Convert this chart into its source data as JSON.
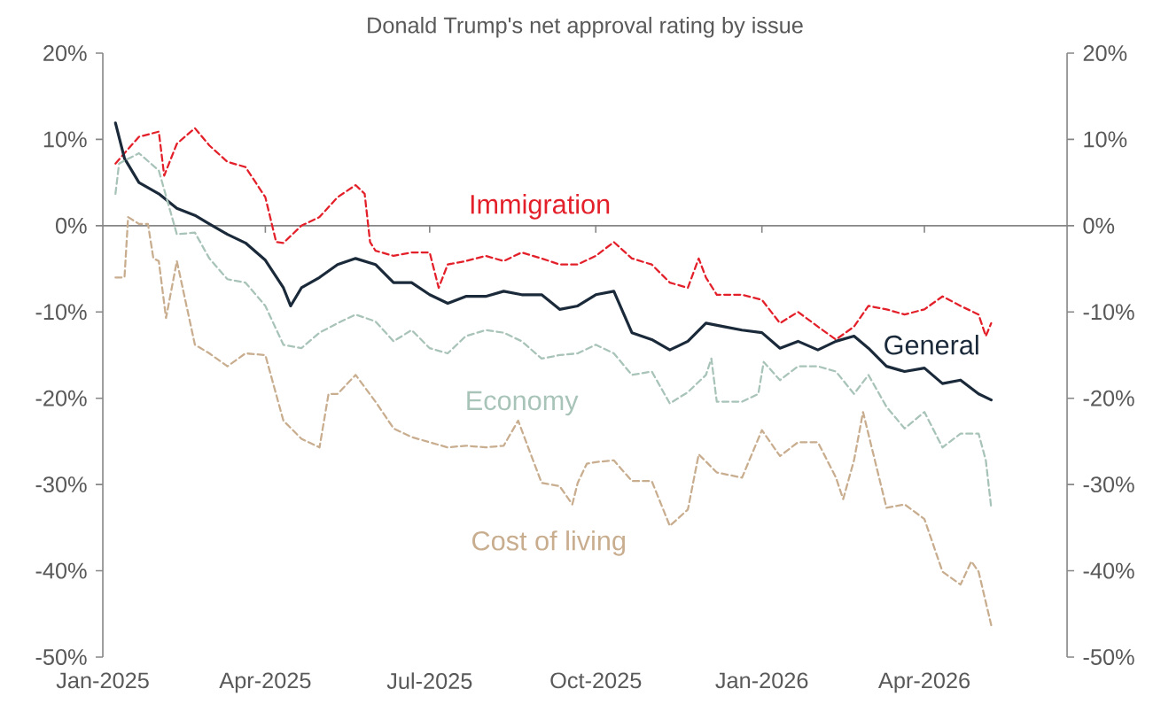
{
  "chart_data": {
    "type": "line",
    "title": "Donald Trump's net approval rating by issue",
    "xlim": [
      "2025-01-01",
      "2026-06-19"
    ],
    "xticks": [
      {
        "value": "2025-01-01",
        "label": "Jan-2025"
      },
      {
        "value": "2025-04-01",
        "label": "Apr-2025"
      },
      {
        "value": "2025-07-01",
        "label": "Jul-2025"
      },
      {
        "value": "2025-10-01",
        "label": "Oct-2025"
      },
      {
        "value": "2026-01-01",
        "label": "Jan-2026"
      },
      {
        "value": "2026-04-01",
        "label": "Apr-2026"
      }
    ],
    "ylim": [
      -50,
      20
    ],
    "yticks": [
      {
        "value": -50,
        "label": "-50%"
      },
      {
        "value": -40,
        "label": "-40%"
      },
      {
        "value": -30,
        "label": "-30%"
      },
      {
        "value": -20,
        "label": "-20%"
      },
      {
        "value": -10,
        "label": "-10%"
      },
      {
        "value": 0,
        "label": "0%"
      },
      {
        "value": 10,
        "label": "10%"
      },
      {
        "value": 20,
        "label": "20%"
      }
    ],
    "y2lim": [
      -50,
      20
    ],
    "y2ticks": [
      {
        "value": -50,
        "label": "-50%"
      },
      {
        "value": -40,
        "label": "-40%"
      },
      {
        "value": -30,
        "label": "-30%"
      },
      {
        "value": -20,
        "label": "-20%"
      },
      {
        "value": -10,
        "label": "-10%"
      },
      {
        "value": 0,
        "label": "0%"
      },
      {
        "value": 10,
        "label": "10%"
      },
      {
        "value": 20,
        "label": "20%"
      }
    ],
    "grid": false,
    "legend": false,
    "marker": "none",
    "ref_lines": [
      {
        "axis": "y",
        "value": 0,
        "color": "#868686",
        "line_style": "solid"
      }
    ],
    "series": [
      {
        "name": "Immigration",
        "color": "#e3202a",
        "line_style": "dashed",
        "x": [
          "2025-01-08",
          "2025-01-13",
          "2025-01-21",
          "2025-02-01",
          "2025-02-04",
          "2025-02-11",
          "2025-02-21",
          "2025-03-01",
          "2025-03-11",
          "2025-03-21",
          "2025-04-01",
          "2025-04-07",
          "2025-04-11",
          "2025-04-21",
          "2025-05-01",
          "2025-05-11",
          "2025-05-21",
          "2025-05-26",
          "2025-05-29",
          "2025-06-01",
          "2025-06-11",
          "2025-06-21",
          "2025-07-01",
          "2025-07-06",
          "2025-07-11",
          "2025-07-21",
          "2025-08-01",
          "2025-08-11",
          "2025-08-21",
          "2025-09-01",
          "2025-09-11",
          "2025-09-21",
          "2025-10-01",
          "2025-10-11",
          "2025-10-21",
          "2025-11-01",
          "2025-11-11",
          "2025-11-21",
          "2025-11-27",
          "2025-12-01",
          "2025-12-07",
          "2025-12-21",
          "2026-01-01",
          "2026-01-11",
          "2026-01-21",
          "2026-02-01",
          "2026-02-11",
          "2026-02-21",
          "2026-03-01",
          "2026-03-11",
          "2026-03-21",
          "2026-04-01",
          "2026-04-11",
          "2026-04-21",
          "2026-05-01",
          "2026-05-05",
          "2026-05-08"
        ],
        "values": [
          7.2,
          8.4,
          10.3,
          10.9,
          5.8,
          9.5,
          11.3,
          9.3,
          7.4,
          6.8,
          3.3,
          -1.9,
          -2,
          0,
          1,
          3.3,
          4.7,
          3.7,
          -1.9,
          -2.9,
          -3.5,
          -3.1,
          -3.1,
          -7.2,
          -4.5,
          -4.1,
          -3.5,
          -4.1,
          -3.1,
          -3.8,
          -4.5,
          -4.5,
          -3.5,
          -1.9,
          -3.8,
          -4.5,
          -6.6,
          -7.2,
          -3.8,
          -6,
          -8,
          -8,
          -8.6,
          -11.3,
          -10,
          -11.7,
          -13.2,
          -11.7,
          -9.3,
          -9.7,
          -10.3,
          -9.7,
          -8.2,
          -9.3,
          -10.3,
          -12.8,
          -11.3
        ]
      },
      {
        "name": "General",
        "color": "#1b2a3a",
        "line_style": "solid",
        "x": [
          "2025-01-08",
          "2025-01-13",
          "2025-01-21",
          "2025-02-01",
          "2025-02-11",
          "2025-02-21",
          "2025-03-01",
          "2025-03-11",
          "2025-03-21",
          "2025-04-01",
          "2025-04-11",
          "2025-04-15",
          "2025-04-21",
          "2025-05-01",
          "2025-05-11",
          "2025-05-21",
          "2025-06-01",
          "2025-06-11",
          "2025-06-21",
          "2025-07-01",
          "2025-07-11",
          "2025-07-21",
          "2025-08-01",
          "2025-08-11",
          "2025-08-21",
          "2025-09-01",
          "2025-09-11",
          "2025-09-21",
          "2025-10-01",
          "2025-10-11",
          "2025-10-21",
          "2025-11-01",
          "2025-11-11",
          "2025-11-21",
          "2025-12-01",
          "2025-12-11",
          "2025-12-21",
          "2026-01-01",
          "2026-01-11",
          "2026-01-21",
          "2026-02-01",
          "2026-02-11",
          "2026-02-21",
          "2026-03-01",
          "2026-03-11",
          "2026-03-21",
          "2026-04-01",
          "2026-04-11",
          "2026-04-21",
          "2026-05-01",
          "2026-05-08"
        ],
        "values": [
          11.9,
          7.8,
          5,
          3.7,
          2,
          1.2,
          0.2,
          -1,
          -2,
          -4,
          -7.2,
          -9.3,
          -7.2,
          -6,
          -4.5,
          -3.8,
          -4.5,
          -6.6,
          -6.6,
          -8,
          -9,
          -8.2,
          -8.2,
          -7.6,
          -8,
          -8,
          -9.7,
          -9.3,
          -8,
          -7.6,
          -12.4,
          -13.2,
          -14.4,
          -13.4,
          -11.3,
          -11.7,
          -12.1,
          -12.4,
          -14.2,
          -13.4,
          -14.4,
          -13.4,
          -12.8,
          -14.2,
          -16.3,
          -16.9,
          -16.5,
          -18.3,
          -17.9,
          -19.5,
          -20.2
        ]
      },
      {
        "name": "Economy",
        "color": "#a8c3b8",
        "line_style": "dashed",
        "x": [
          "2025-01-08",
          "2025-01-10",
          "2025-01-21",
          "2025-02-01",
          "2025-02-11",
          "2025-02-21",
          "2025-03-01",
          "2025-03-11",
          "2025-03-21",
          "2025-04-01",
          "2025-04-11",
          "2025-04-21",
          "2025-05-01",
          "2025-05-11",
          "2025-05-21",
          "2025-06-01",
          "2025-06-11",
          "2025-06-21",
          "2025-07-01",
          "2025-07-11",
          "2025-07-21",
          "2025-08-01",
          "2025-08-11",
          "2025-08-21",
          "2025-09-01",
          "2025-09-11",
          "2025-09-21",
          "2025-10-01",
          "2025-10-11",
          "2025-10-21",
          "2025-11-01",
          "2025-11-11",
          "2025-11-21",
          "2025-12-01",
          "2025-12-04",
          "2025-12-07",
          "2025-12-21",
          "2025-12-30",
          "2026-01-02",
          "2026-01-11",
          "2026-01-21",
          "2026-02-01",
          "2026-02-11",
          "2026-02-21",
          "2026-03-01",
          "2026-03-11",
          "2026-03-21",
          "2026-04-01",
          "2026-04-11",
          "2026-04-21",
          "2026-05-01",
          "2026-05-05",
          "2026-05-08"
        ],
        "values": [
          3.7,
          7.2,
          8.4,
          6.4,
          -1,
          -0.8,
          -3.8,
          -6.2,
          -6.6,
          -9.3,
          -13.8,
          -14.2,
          -12.4,
          -11.3,
          -10.3,
          -11.1,
          -13.4,
          -12.1,
          -14.2,
          -14.8,
          -12.8,
          -12.1,
          -12.4,
          -13.4,
          -15.4,
          -15,
          -14.8,
          -13.8,
          -14.8,
          -17.3,
          -16.9,
          -20.6,
          -19.3,
          -17.3,
          -15.4,
          -20.4,
          -20.4,
          -19.5,
          -15.8,
          -17.9,
          -16.3,
          -16.3,
          -16.9,
          -19.5,
          -17.3,
          -21,
          -23.5,
          -21.6,
          -25.7,
          -24.1,
          -24.1,
          -27.2,
          -32.7
        ]
      },
      {
        "name": "Cost of living",
        "color": "#c8ad8f",
        "line_style": "dashed",
        "x": [
          "2025-01-08",
          "2025-01-13",
          "2025-01-15",
          "2025-01-21",
          "2025-01-26",
          "2025-01-29",
          "2025-02-01",
          "2025-02-05",
          "2025-02-11",
          "2025-02-21",
          "2025-03-01",
          "2025-03-11",
          "2025-03-21",
          "2025-04-01",
          "2025-04-11",
          "2025-04-21",
          "2025-05-01",
          "2025-05-06",
          "2025-05-11",
          "2025-05-21",
          "2025-06-01",
          "2025-06-11",
          "2025-06-21",
          "2025-07-01",
          "2025-07-11",
          "2025-07-21",
          "2025-08-01",
          "2025-08-11",
          "2025-08-19",
          "2025-08-26",
          "2025-09-01",
          "2025-09-11",
          "2025-09-18",
          "2025-09-21",
          "2025-09-26",
          "2025-10-01",
          "2025-10-11",
          "2025-10-21",
          "2025-11-01",
          "2025-11-11",
          "2025-11-21",
          "2025-11-27",
          "2025-12-07",
          "2025-12-21",
          "2026-01-01",
          "2026-01-11",
          "2026-01-21",
          "2026-02-01",
          "2026-02-11",
          "2026-02-15",
          "2026-02-21",
          "2026-02-26",
          "2026-03-11",
          "2026-03-21",
          "2026-04-01",
          "2026-04-11",
          "2026-04-21",
          "2026-04-27",
          "2026-05-01",
          "2026-05-08"
        ],
        "values": [
          -6,
          -6,
          1,
          0.2,
          0.2,
          -3.8,
          -4.1,
          -10.7,
          -4.1,
          -13.8,
          -14.8,
          -16.3,
          -14.8,
          -15,
          -22.6,
          -24.7,
          -25.7,
          -19.5,
          -19.5,
          -17.3,
          -20.4,
          -23.5,
          -24.5,
          -25.1,
          -25.7,
          -25.5,
          -25.7,
          -25.5,
          -22.6,
          -26.5,
          -29.8,
          -30.2,
          -32.3,
          -29.8,
          -27.6,
          -27.4,
          -27.2,
          -29.6,
          -29.6,
          -34.8,
          -32.9,
          -26.5,
          -28.6,
          -29.2,
          -23.7,
          -26.7,
          -25.1,
          -25.1,
          -29.2,
          -31.7,
          -27.2,
          -21.6,
          -32.7,
          -32.3,
          -34,
          -40.1,
          -41.6,
          -38.9,
          -40.1,
          -46.3
        ]
      }
    ]
  }
}
